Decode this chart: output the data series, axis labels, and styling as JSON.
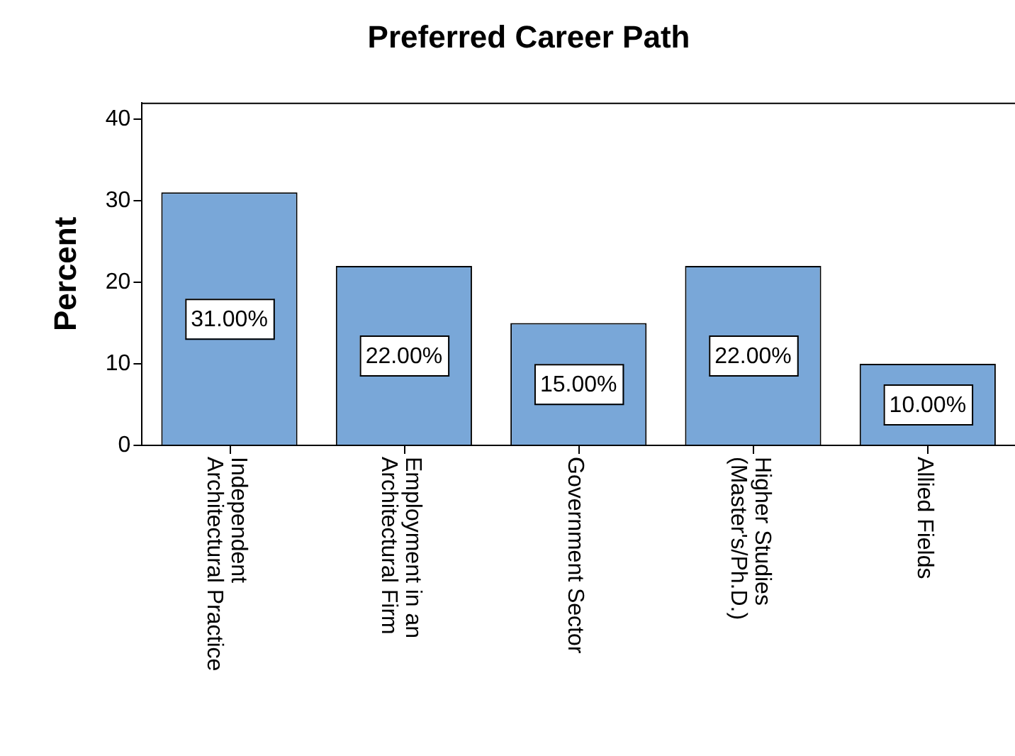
{
  "chart_data": {
    "type": "bar",
    "title": "Preferred Career Path",
    "ylabel": "Percent",
    "categories": [
      "Independent\nArchitectural Practice",
      "Employment in an\nArchitectural Firm",
      "Government Sector",
      "Higher Studies\n(Master's/Ph.D.)",
      "Allied Fields"
    ],
    "values": [
      31,
      22,
      15,
      22,
      10
    ],
    "value_labels": [
      "31.00%",
      "22.00%",
      "15.00%",
      "22.00%",
      "10.00%"
    ],
    "color": "#79a7d8",
    "ylim": [
      0,
      42
    ],
    "yticks": [
      0,
      10,
      20,
      30,
      40
    ],
    "grid": false,
    "legend": false
  }
}
